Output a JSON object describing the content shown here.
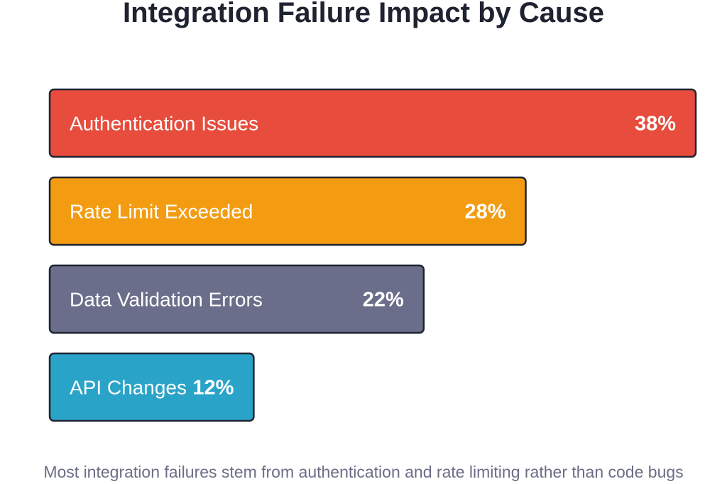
{
  "chart_data": {
    "type": "bar",
    "orientation": "horizontal",
    "title": "Integration Failure Impact by Cause",
    "caption": "Most integration failures stem from authentication and rate limiting rather than code bugs",
    "unit": "%",
    "categories": [
      "Authentication Issues",
      "Rate Limit Exceeded",
      "Data Validation Errors",
      "API Changes"
    ],
    "values": [
      38,
      28,
      22,
      12
    ],
    "value_labels": [
      "38%",
      "28%",
      "22%",
      "12%"
    ],
    "colors": [
      "#e74c3c",
      "#f39c12",
      "#6b6e8a",
      "#2aa3c9"
    ],
    "xlim": [
      0,
      38
    ],
    "grid": false,
    "legend": "none"
  }
}
